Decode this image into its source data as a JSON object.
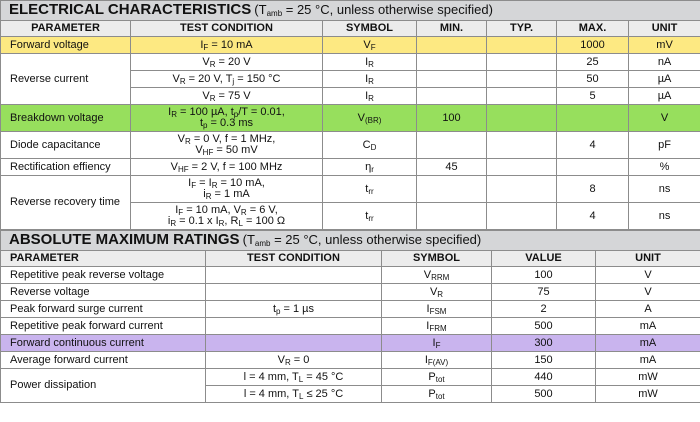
{
  "electrical": {
    "title": "ELECTRICAL CHARACTERISTICS",
    "condition_prefix": "(T",
    "condition_sub": "amb",
    "condition_suffix": " = 25 °C, unless otherwise specified)",
    "headers": [
      "PARAMETER",
      "TEST CONDITION",
      "SYMBOL",
      "MIN.",
      "TYP.",
      "MAX.",
      "UNIT"
    ],
    "forward_voltage": {
      "param": "Forward voltage",
      "cond": [
        "I",
        "F",
        " = 10 mA"
      ],
      "sym": [
        "V",
        "F"
      ],
      "min": "",
      "typ": "",
      "max": "1000",
      "unit": "mV"
    },
    "reverse_current": {
      "param": "Reverse current",
      "rows": [
        {
          "cond": [
            "V",
            "R",
            " = 20 V"
          ],
          "sym": [
            "I",
            "R"
          ],
          "max": "25",
          "unit": "nA"
        },
        {
          "cond": [
            "V",
            "R",
            " = 20 V, T",
            "j",
            " = 150 °C"
          ],
          "sym": [
            "I",
            "R"
          ],
          "max": "50",
          "unit": "µA"
        },
        {
          "cond": [
            "V",
            "R",
            " = 75 V"
          ],
          "sym": [
            "I",
            "R"
          ],
          "max": "5",
          "unit": "µA"
        }
      ]
    },
    "breakdown_voltage": {
      "param": "Breakdown voltage",
      "cond_l1": [
        "I",
        "R",
        " = 100 µA, t",
        "p",
        "/T = 0.01,"
      ],
      "cond_l2": [
        "t",
        "p",
        " = 0.3 ms"
      ],
      "sym": [
        "V",
        "(BR)"
      ],
      "min": "100",
      "max": "",
      "unit": "V"
    },
    "diode_capacitance": {
      "param": "Diode capacitance",
      "cond_l1": [
        "V",
        "R",
        " = 0 V, f = 1 MHz,"
      ],
      "cond_l2": [
        "V",
        "HF",
        " = 50 mV"
      ],
      "sym": [
        "C",
        "D"
      ],
      "max": "4",
      "unit": "pF"
    },
    "rectification": {
      "param": "Rectification effiency",
      "cond": [
        "V",
        "HF",
        " = 2 V, f = 100 MHz"
      ],
      "sym": [
        "η",
        "r"
      ],
      "min": "45",
      "max": "",
      "unit": "%"
    },
    "reverse_recovery": {
      "param": "Reverse recovery time",
      "rows": [
        {
          "cond_l1": [
            "I",
            "F",
            " = I",
            "R",
            " = 10 mA,"
          ],
          "cond_l2": [
            "i",
            "R",
            " = 1 mA"
          ],
          "sym": [
            "t",
            "rr"
          ],
          "max": "8",
          "unit": "ns"
        },
        {
          "cond_l1": [
            "I",
            "F",
            " = 10 mA, V",
            "R",
            " = 6 V,"
          ],
          "cond_l2": [
            "i",
            "R",
            " = 0.1 x I",
            "R",
            ", R",
            "L",
            " = 100 Ω"
          ],
          "sym": [
            "t",
            "rr"
          ],
          "max": "4",
          "unit": "ns"
        }
      ]
    }
  },
  "absolute": {
    "title": "ABSOLUTE MAXIMUM RATINGS",
    "condition_prefix": "(T",
    "condition_sub": "amb",
    "condition_suffix": " = 25 °C, unless otherwise specified)",
    "headers": [
      "PARAMETER",
      "TEST CONDITION",
      "SYMBOL",
      "VALUE",
      "UNIT"
    ],
    "rows": [
      {
        "param": "Repetitive peak reverse voltage",
        "cond": [
          "",
          "",
          ""
        ],
        "sym": [
          "V",
          "RRM"
        ],
        "value": "100",
        "unit": "V",
        "hl": ""
      },
      {
        "param": "Reverse voltage",
        "cond": [
          "",
          "",
          ""
        ],
        "sym": [
          "V",
          "R"
        ],
        "value": "75",
        "unit": "V",
        "hl": ""
      },
      {
        "param": "Peak forward surge current",
        "cond": [
          "t",
          "p",
          " = 1 µs"
        ],
        "sym": [
          "I",
          "FSM"
        ],
        "value": "2",
        "unit": "A",
        "hl": ""
      },
      {
        "param": "Repetitive peak forward current",
        "cond": [
          "",
          "",
          ""
        ],
        "sym": [
          "I",
          "FRM"
        ],
        "value": "500",
        "unit": "mA",
        "hl": ""
      },
      {
        "param": "Forward continuous current",
        "cond": [
          "",
          "",
          ""
        ],
        "sym": [
          "I",
          "F"
        ],
        "value": "300",
        "unit": "mA",
        "hl": "purple"
      },
      {
        "param": "Average forward current",
        "cond": [
          "V",
          "R",
          " = 0"
        ],
        "sym": [
          "I",
          "F(AV)"
        ],
        "value": "150",
        "unit": "mA",
        "hl": ""
      }
    ],
    "power": {
      "param": "Power dissipation",
      "rows": [
        {
          "cond": [
            "l = 4 mm, T",
            "L",
            " = 45 °C"
          ],
          "sym": [
            "P",
            "tot"
          ],
          "value": "440",
          "unit": "mW"
        },
        {
          "cond": [
            "l = 4 mm, T",
            "L",
            " ≤ 25 °C"
          ],
          "sym": [
            "P",
            "tot"
          ],
          "value": "500",
          "unit": "mW"
        }
      ]
    }
  }
}
